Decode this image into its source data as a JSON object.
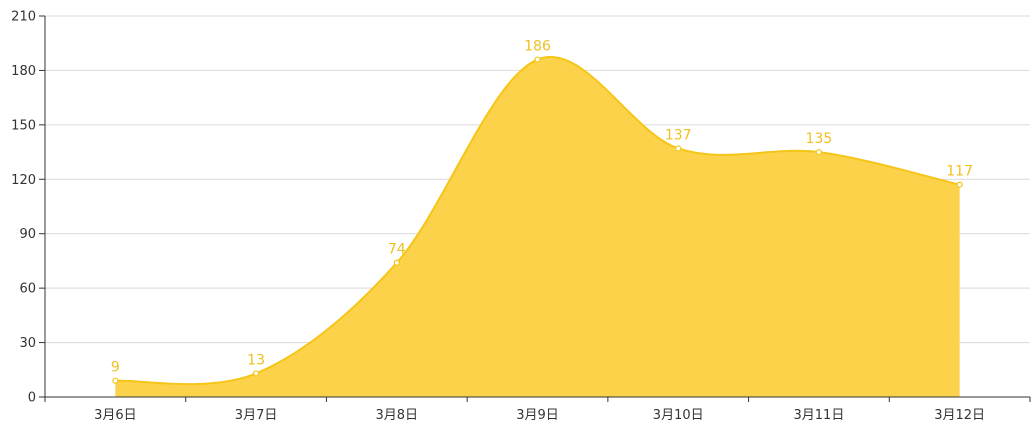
{
  "chart_data": {
    "type": "area",
    "title": "",
    "xlabel": "",
    "ylabel": "",
    "categories": [
      "3月6日",
      "3月7日",
      "3月8日",
      "3月9日",
      "3月10日",
      "3月11日",
      "3月12日"
    ],
    "series": [
      {
        "values": [
          9,
          13,
          74,
          186,
          137,
          135,
          117
        ]
      }
    ],
    "ylim": [
      0,
      210
    ],
    "yticks": [
      0,
      30,
      60,
      90,
      120,
      150,
      180,
      210
    ],
    "grid": true,
    "legend": "none",
    "smooth": true,
    "show_data_labels": true,
    "colors": {
      "area_fill": "#fcd24a",
      "line": "#f5c518",
      "data_label": "#f0c020",
      "point_fill": "#ffffff",
      "grid": "#d9d9d9",
      "axis": "#333333"
    }
  }
}
